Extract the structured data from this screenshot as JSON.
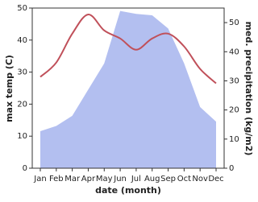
{
  "chart_data": {
    "type": "line-area",
    "x_label": "date (month)",
    "y_label": "max temp (C)",
    "y2_label": "med. precipitation (kg/m2)",
    "categories": [
      "Jan",
      "Feb",
      "Mar",
      "Apr",
      "May",
      "Jun",
      "Jul",
      "Aug",
      "Sep",
      "Oct",
      "Nov",
      "Dec"
    ],
    "series": [
      {
        "name": "max temp",
        "color": "#c0505a",
        "values": [
          28.5,
          33,
          42,
          48,
          43,
          40.5,
          37,
          40.5,
          42,
          38,
          31,
          26.5
        ]
      },
      {
        "name": "med. precipitation",
        "color": "#b3bff0",
        "axis": "y2",
        "values": [
          12.7,
          14.5,
          18,
          27,
          36,
          54,
          53,
          52.5,
          48,
          36,
          21,
          16
        ]
      }
    ],
    "ylim": [
      0,
      50
    ],
    "yticks": [
      0,
      10,
      20,
      30,
      40,
      50
    ],
    "y2lim": [
      0,
      55
    ],
    "y2ticks": [
      0,
      10,
      20,
      30,
      40,
      50
    ]
  }
}
